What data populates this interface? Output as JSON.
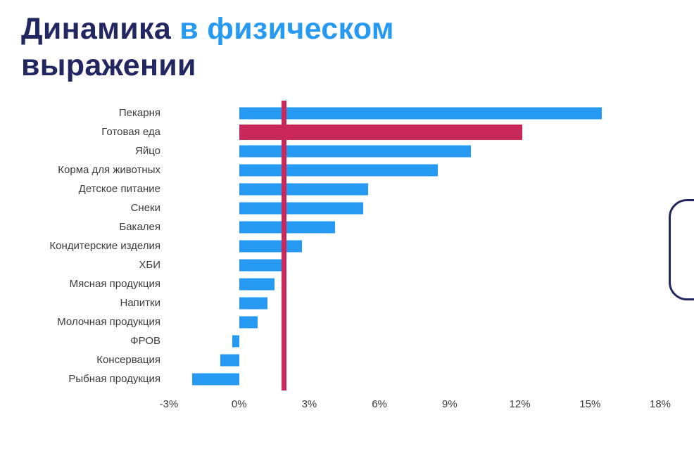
{
  "title": {
    "part1": "Динамика",
    "part2": " в физическом",
    "part3": "выражении"
  },
  "colors": {
    "accent_blue": "#2699F2",
    "accent_red": "#C9295A",
    "title_dark": "#232761"
  },
  "chart_data": {
    "type": "bar",
    "orientation": "horizontal",
    "title": "Динамика в физическом выражении",
    "categories": [
      "Пекарня",
      "Готовая еда",
      "Яйцо",
      "Корма для животных",
      "Детское питание",
      "Снеки",
      "Бакалея",
      "Кондитерские изделия",
      "ХБИ",
      "Мясная продукция",
      "Напитки",
      "Молочная продукция",
      "ФРОВ",
      "Консервация",
      "Рыбная продукция"
    ],
    "values": [
      15.5,
      12.1,
      9.9,
      8.5,
      5.5,
      5.3,
      4.1,
      2.7,
      1.9,
      1.5,
      1.2,
      0.8,
      -0.3,
      -0.8,
      -2.0
    ],
    "highlight_category": "Готовая еда",
    "reference_line_value": 1.9,
    "xlim": [
      -3,
      18
    ],
    "x_ticks": [
      {
        "label": "-3%",
        "value": -3
      },
      {
        "label": "0%",
        "value": 0
      },
      {
        "label": "3%",
        "value": 3
      },
      {
        "label": "6%",
        "value": 6
      },
      {
        "label": "9%",
        "value": 9
      },
      {
        "label": "12%",
        "value": 12
      },
      {
        "label": "15%",
        "value": 15
      },
      {
        "label": "18%",
        "value": 18
      }
    ],
    "grid": false,
    "legend": false
  }
}
